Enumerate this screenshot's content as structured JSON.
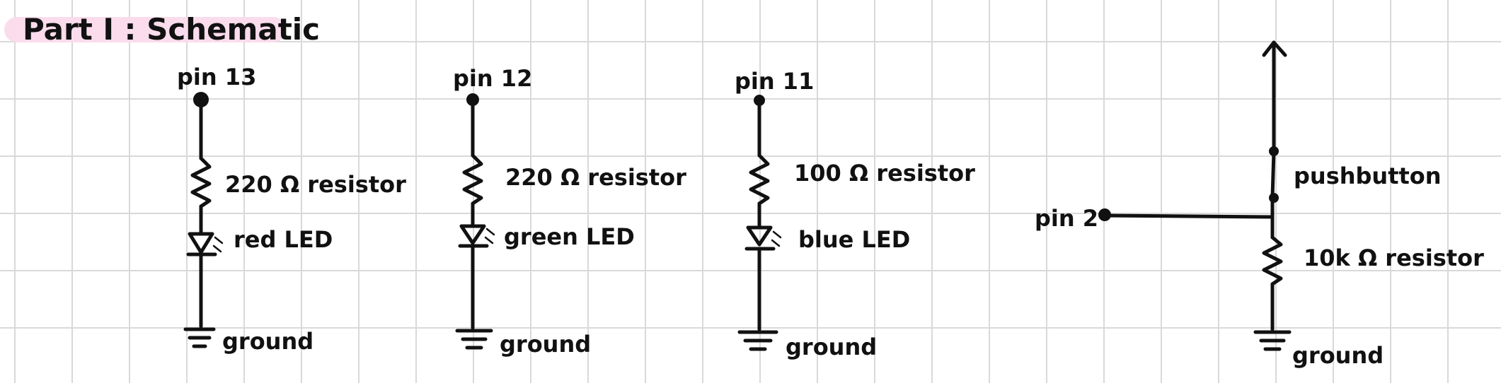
{
  "title": "Part I : Schematic",
  "colors": {
    "grid": "#d9d9d9",
    "ink": "#111111",
    "highlight": "#fadcec",
    "paper": "#ffffff"
  },
  "circuits": [
    {
      "pin": "pin 13",
      "resistor": "220 Ω resistor",
      "led": "red LED",
      "ground": "ground"
    },
    {
      "pin": "pin 12",
      "resistor": "220 Ω resistor",
      "led": "green LED",
      "ground": "ground"
    },
    {
      "pin": "pin 11",
      "resistor": "100 Ω resistor",
      "led": "blue  LED",
      "ground": "ground"
    }
  ],
  "button_circuit": {
    "pin": "pin 2",
    "switch": "pushbutton",
    "resistor": "10k Ω resistor",
    "ground": "ground"
  }
}
